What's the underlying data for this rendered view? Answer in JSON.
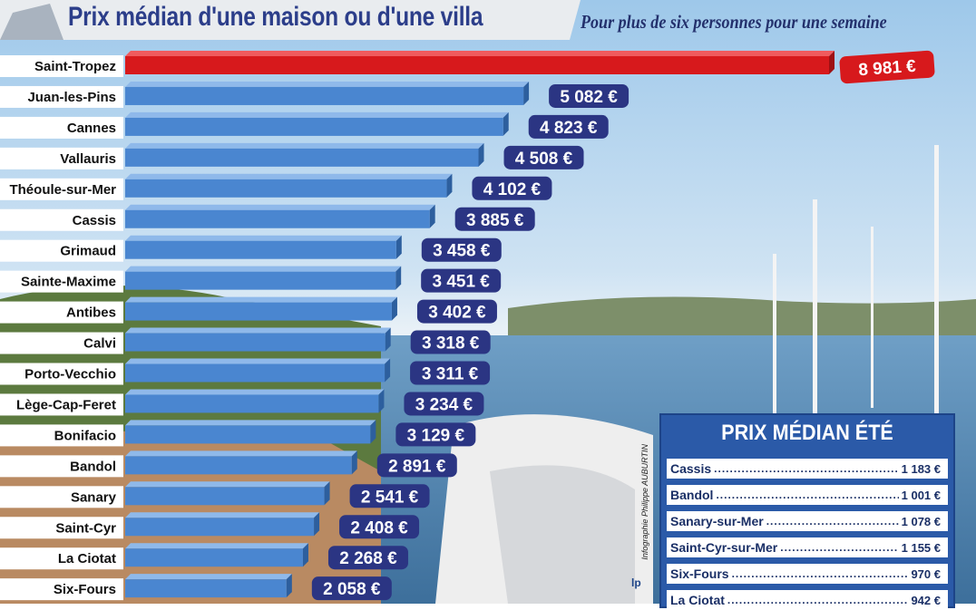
{
  "title": "Prix médian d'une maison ou d'une villa",
  "subtitle": "Pour plus de six personnes pour une semaine",
  "colors": {
    "highlight": "#d7191c",
    "bar": "#4a86d0",
    "label_bg": "#2b3583",
    "box_bg": "#2b5aa8"
  },
  "chart_data": {
    "type": "bar",
    "orientation": "horizontal",
    "categories": [
      "Saint-Tropez",
      "Juan-les-Pins",
      "Cannes",
      "Vallauris",
      "Théoule-sur-Mer",
      "Cassis",
      "Grimaud",
      "Sainte-Maxime",
      "Antibes",
      "Calvi",
      "Porto-Vecchio",
      "Lège-Cap-Feret",
      "Bonifacio",
      "Bandol",
      "Sanary",
      "Saint-Cyr",
      "La Ciotat",
      "Six-Fours"
    ],
    "values": [
      8981,
      5082,
      4823,
      4508,
      4102,
      3885,
      3458,
      3451,
      3402,
      3318,
      3311,
      3234,
      3129,
      2891,
      2541,
      2408,
      2268,
      2058
    ],
    "value_labels": [
      "8 981 €",
      "5 082 €",
      "4 823 €",
      "4 508 €",
      "4 102 €",
      "3 885 €",
      "3 458 €",
      "3 451 €",
      "3 402 €",
      "3 318 €",
      "3 311 €",
      "3 234 €",
      "3 129 €",
      "2 891 €",
      "2 541 €",
      "2 408 €",
      "2 268 €",
      "2 058 €"
    ],
    "highlight_index": 0,
    "unit": "€"
  },
  "summer_box": {
    "title": "PRIX MÉDIAN ÉTÉ",
    "rows": [
      {
        "name": "Cassis",
        "price": "1 183 €"
      },
      {
        "name": "Bandol",
        "price": "1 001 €"
      },
      {
        "name": "Sanary-sur-Mer",
        "price": "1 078 €"
      },
      {
        "name": "Saint-Cyr-sur-Mer",
        "price": "1 155 €"
      },
      {
        "name": "Six-Fours",
        "price": "970 €"
      },
      {
        "name": "La Ciotat",
        "price": "942 €"
      }
    ]
  },
  "credit": "Infographie Philippe AUBURTIN",
  "logo": "lp"
}
